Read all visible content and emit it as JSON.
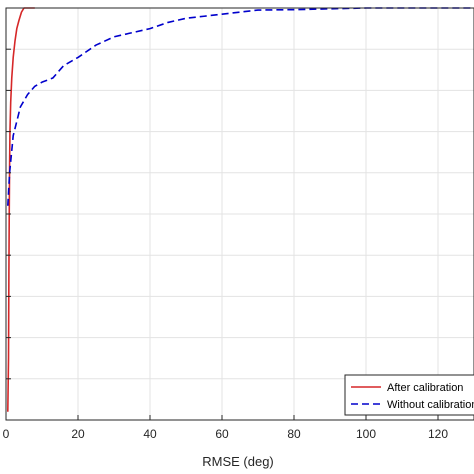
{
  "chart_data": {
    "type": "line",
    "title": "",
    "xlabel": "RMSE (deg)",
    "ylabel": "",
    "xlim": [
      0,
      130
    ],
    "ylim": [
      0,
      1
    ],
    "grid": true,
    "x_ticks": [
      0,
      20,
      40,
      60,
      80,
      100,
      120
    ],
    "x_tick_labels": [
      "0",
      "20",
      "40",
      "60",
      "80",
      "100",
      "120"
    ],
    "y_ticks": [
      0,
      0.1,
      0.2,
      0.3,
      0.4,
      0.5,
      0.6,
      0.7,
      0.8,
      0.9,
      1.0
    ],
    "legend_position": "bottom-right",
    "series": [
      {
        "name": "After calibration",
        "color": "#d62728",
        "style": "solid",
        "points": [
          [
            0.5,
            0.02
          ],
          [
            0.7,
            0.15
          ],
          [
            0.8,
            0.35
          ],
          [
            0.9,
            0.5
          ],
          [
            1.0,
            0.62
          ],
          [
            1.1,
            0.7
          ],
          [
            1.3,
            0.77
          ],
          [
            1.6,
            0.83
          ],
          [
            2.0,
            0.88
          ],
          [
            2.5,
            0.92
          ],
          [
            3.0,
            0.95
          ],
          [
            3.6,
            0.97
          ],
          [
            4.3,
            0.99
          ],
          [
            5.0,
            1.0
          ],
          [
            8.0,
            1.0
          ]
        ]
      },
      {
        "name": "Without calibration",
        "color": "#0000cc",
        "style": "dashed",
        "points": [
          [
            0.5,
            0.52
          ],
          [
            1.0,
            0.6
          ],
          [
            2.0,
            0.69
          ],
          [
            4.0,
            0.76
          ],
          [
            6.0,
            0.79
          ],
          [
            8.0,
            0.81
          ],
          [
            10.0,
            0.82
          ],
          [
            13.0,
            0.83
          ],
          [
            16.0,
            0.86
          ],
          [
            20.0,
            0.88
          ],
          [
            25.0,
            0.91
          ],
          [
            30.0,
            0.93
          ],
          [
            35.0,
            0.94
          ],
          [
            40.0,
            0.95
          ],
          [
            45.0,
            0.965
          ],
          [
            50.0,
            0.975
          ],
          [
            55.0,
            0.98
          ],
          [
            60.0,
            0.985
          ],
          [
            65.0,
            0.99
          ],
          [
            70.0,
            0.995
          ],
          [
            80.0,
            0.996
          ],
          [
            90.0,
            0.998
          ],
          [
            100.0,
            1.0
          ],
          [
            110.0,
            1.0
          ],
          [
            120.0,
            1.0
          ],
          [
            130.0,
            1.0
          ]
        ]
      }
    ]
  }
}
